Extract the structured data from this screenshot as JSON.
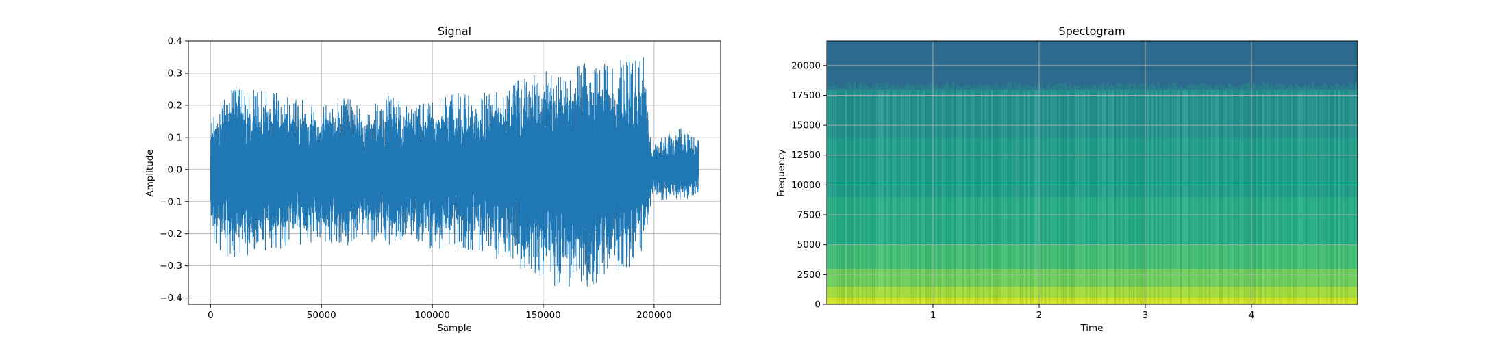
{
  "chart_data": [
    {
      "type": "line",
      "title": "Signal",
      "xlabel": "Sample",
      "ylabel": "Amplitude",
      "xlim": [
        -10000,
        230000
      ],
      "ylim": [
        -0.42,
        0.4
      ],
      "xticks": [
        0,
        50000,
        100000,
        150000,
        200000
      ],
      "xtick_labels": [
        "0",
        "50000",
        "100000",
        "150000",
        "200000"
      ],
      "yticks": [
        -0.4,
        -0.3,
        -0.2,
        -0.1,
        0.0,
        0.1,
        0.2,
        0.3,
        0.4
      ],
      "ytick_labels": [
        "−0.4",
        "−0.3",
        "−0.2",
        "−0.1",
        "0.0",
        "0.1",
        "0.2",
        "0.3",
        "0.4"
      ],
      "grid": true,
      "color": "#1f77b4",
      "envelope": {
        "x": [
          0,
          10000,
          20000,
          30000,
          40000,
          50000,
          60000,
          70000,
          80000,
          90000,
          100000,
          110000,
          120000,
          130000,
          140000,
          150000,
          160000,
          170000,
          180000,
          190000,
          196000,
          199000,
          205000,
          212000,
          220000
        ],
        "upper": [
          0.15,
          0.26,
          0.25,
          0.24,
          0.22,
          0.2,
          0.23,
          0.19,
          0.23,
          0.2,
          0.21,
          0.24,
          0.23,
          0.26,
          0.28,
          0.31,
          0.3,
          0.34,
          0.33,
          0.35,
          0.36,
          0.08,
          0.11,
          0.13,
          0.09
        ],
        "lower": [
          -0.24,
          -0.28,
          -0.26,
          -0.25,
          -0.24,
          -0.23,
          -0.24,
          -0.22,
          -0.24,
          -0.22,
          -0.25,
          -0.24,
          -0.26,
          -0.28,
          -0.32,
          -0.35,
          -0.38,
          -0.37,
          -0.34,
          -0.31,
          -0.25,
          -0.08,
          -0.1,
          -0.1,
          -0.08
        ]
      }
    },
    {
      "type": "heatmap",
      "title": "Spectogram",
      "xlabel": "Time",
      "ylabel": "Frequency",
      "xlim": [
        0,
        5
      ],
      "ylim": [
        0,
        22050
      ],
      "xticks": [
        1,
        2,
        3,
        4
      ],
      "xtick_labels": [
        "1",
        "2",
        "3",
        "4"
      ],
      "yticks": [
        0,
        2500,
        5000,
        7500,
        10000,
        12500,
        15000,
        17500,
        20000
      ],
      "ytick_labels": [
        "0",
        "2500",
        "5000",
        "7500",
        "10000",
        "12500",
        "15000",
        "17500",
        "20000"
      ],
      "grid": true,
      "colormap": "viridis",
      "cutoff_frequency": 18000,
      "bands": [
        {
          "from": 0,
          "to": 600,
          "color": "#cde11d"
        },
        {
          "from": 600,
          "to": 1500,
          "color": "#a2da37"
        },
        {
          "from": 1500,
          "to": 3000,
          "color": "#6ccd5a"
        },
        {
          "from": 3000,
          "to": 5000,
          "color": "#40bd72"
        },
        {
          "from": 5000,
          "to": 9000,
          "color": "#25ac82"
        },
        {
          "from": 9000,
          "to": 14000,
          "color": "#1f9e89"
        },
        {
          "from": 14000,
          "to": 18000,
          "color": "#23918c"
        },
        {
          "from": 18000,
          "to": 22050,
          "color": "#2c6b8e"
        }
      ]
    }
  ]
}
